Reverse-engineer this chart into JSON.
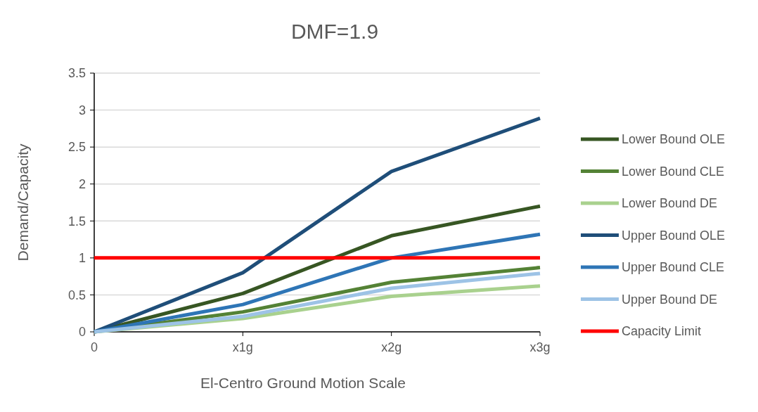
{
  "chart_data": {
    "type": "line",
    "title": "DMF=1.9",
    "xlabel": "El-Centro Ground Motion Scale",
    "ylabel": "Demand/Capacity",
    "categories": [
      "0",
      "x1g",
      "x2g",
      "x3g"
    ],
    "series": [
      {
        "name": "Lower Bound OLE",
        "color": "#375623",
        "values": [
          0,
          0.52,
          1.3,
          1.7
        ]
      },
      {
        "name": "Lower Bound CLE",
        "color": "#548235",
        "values": [
          0,
          0.27,
          0.67,
          0.87
        ]
      },
      {
        "name": "Lower Bound DE",
        "color": "#a9d18e",
        "values": [
          0,
          0.18,
          0.48,
          0.62
        ]
      },
      {
        "name": "Upper Bound OLE",
        "color": "#1f4e79",
        "values": [
          0,
          0.8,
          2.17,
          2.89
        ]
      },
      {
        "name": "Upper Bound CLE",
        "color": "#2e75b6",
        "values": [
          0,
          0.37,
          1.0,
          1.32
        ]
      },
      {
        "name": "Upper Bound DE",
        "color": "#9dc3e6",
        "values": [
          0,
          0.21,
          0.59,
          0.79
        ]
      },
      {
        "name": "Capacity Limit",
        "color": "#ff0000",
        "values": [
          1,
          1,
          1,
          1
        ]
      }
    ],
    "ylim": [
      0,
      3.5
    ],
    "yticks": [
      0,
      0.5,
      1,
      1.5,
      2,
      2.5,
      3,
      3.5
    ],
    "grid": "y",
    "legend": "right",
    "marker": "none",
    "line_style": "solid"
  }
}
